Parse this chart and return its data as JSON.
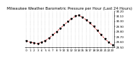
{
  "title": "Milwaukee Weather Barometric Pressure per Hour (Last 24 Hours)",
  "hours": [
    0,
    1,
    2,
    3,
    4,
    5,
    6,
    7,
    8,
    9,
    10,
    11,
    12,
    13,
    14,
    15,
    16,
    17,
    18,
    19,
    20,
    21,
    22,
    23
  ],
  "pressure": [
    29.62,
    29.6,
    29.58,
    29.57,
    29.6,
    29.63,
    29.68,
    29.74,
    29.8,
    29.87,
    29.93,
    30.0,
    30.05,
    30.1,
    30.12,
    30.08,
    30.03,
    29.97,
    29.9,
    29.82,
    29.74,
    29.66,
    29.6,
    29.54
  ],
  "line_color": "#cc0000",
  "marker_color": "#000000",
  "bg_color": "#ffffff",
  "grid_color": "#999999",
  "title_fontsize": 4.0,
  "axis_fontsize": 3.0,
  "ylim_min": 29.5,
  "ylim_max": 30.2,
  "ytick_step": 0.1
}
